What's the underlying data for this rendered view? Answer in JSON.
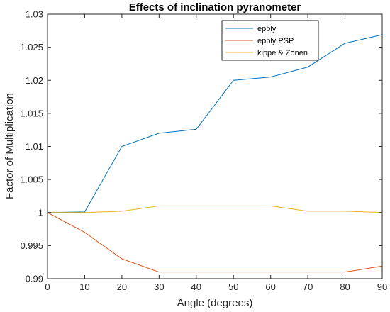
{
  "chart_data": {
    "type": "line",
    "title": "Effects of inclination pyranometer",
    "xlabel": "Angle (degrees)",
    "ylabel": "Factor of Multiplication",
    "xlim": [
      0,
      90
    ],
    "ylim": [
      0.99,
      1.03
    ],
    "xticks": [
      "0",
      "10",
      "20",
      "30",
      "40",
      "50",
      "60",
      "70",
      "80",
      "90"
    ],
    "yticks": [
      "0.99",
      "0.995",
      "1",
      "1.005",
      "1.01",
      "1.015",
      "1.02",
      "1.025",
      "1.03"
    ],
    "grid": false,
    "legend_position": "top-right",
    "x": [
      0,
      10,
      20,
      30,
      40,
      50,
      60,
      70,
      80,
      90
    ],
    "series": [
      {
        "name": "epply",
        "color": "#0072BD",
        "values": [
          1.0,
          1.0001,
          1.01,
          1.012,
          1.0126,
          1.02,
          1.0205,
          1.022,
          1.0256,
          1.0269
        ]
      },
      {
        "name": "epply PSP",
        "color": "#D95319",
        "values": [
          1.0,
          0.997,
          0.993,
          0.991,
          0.991,
          0.991,
          0.991,
          0.991,
          0.991,
          0.9919
        ]
      },
      {
        "name": "kippe & Zonen",
        "color": "#EDB120",
        "values": [
          1.0,
          1.0,
          1.0002,
          1.001,
          1.001,
          1.001,
          1.001,
          1.0002,
          1.0002,
          1.0
        ]
      }
    ]
  }
}
